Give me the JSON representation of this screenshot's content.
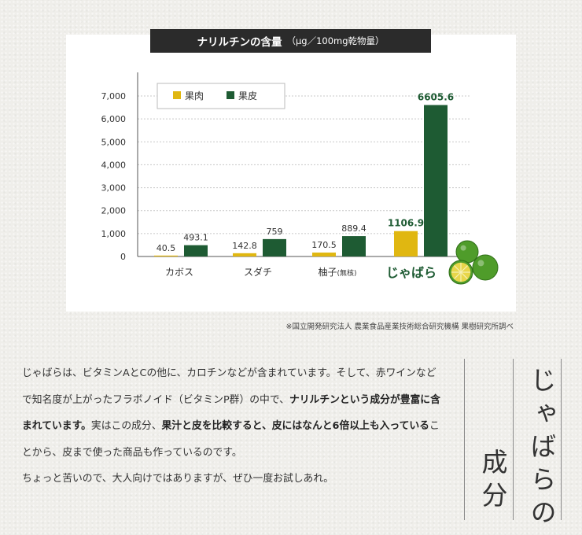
{
  "chart_data": {
    "type": "bar",
    "title": "ナリルチンの含量",
    "title_unit": "（μg／100mg乾物量）",
    "categories": [
      "カボス",
      "スダチ",
      "柚子",
      "じゃばら"
    ],
    "category_suffixes": [
      "",
      "",
      "(無核)",
      ""
    ],
    "series": [
      {
        "name": "果肉",
        "color": "#e0b711",
        "values": [
          40.5,
          142.8,
          170.5,
          1106.9
        ],
        "labels": [
          "40.5",
          "142.8",
          "170.5",
          "1106.9"
        ]
      },
      {
        "name": "果皮",
        "color": "#1e5b33",
        "values": [
          493.1,
          759,
          889.4,
          6605.6
        ],
        "labels": [
          "493.1",
          "759",
          "889.4",
          "6605.6"
        ]
      }
    ],
    "ylim": [
      0,
      7000
    ],
    "yticks": [
      0,
      1000,
      2000,
      3000,
      4000,
      5000,
      6000,
      7000
    ],
    "ytick_labels": [
      "0",
      "1,000",
      "2,000",
      "3,000",
      "4,000",
      "5,000",
      "6,000",
      "7,000"
    ],
    "highlight_category": "じゃばら",
    "grid": true,
    "legend_position": "top-left"
  },
  "source_note": "※国立開発研究法人 農業食品産業技術総合研究機構 果樹研究所調べ",
  "section_title": {
    "line1": "じゃばらの",
    "line2": "成分"
  },
  "paragraph1": [
    {
      "t": "じゃばらは、ビタミンAとCの他に、カロチンなどが含まれています。そして、赤ワインなどで知名度が上がったフラボノイド（ビタミンP群）の中で、"
    },
    {
      "t": "ナリルチンという成分が豊富に含まれています。",
      "b": true
    },
    {
      "t": "実はこの成分、"
    },
    {
      "t": "果汁と皮を比較すると、皮にはなんと6倍以上も入っている",
      "b": true
    },
    {
      "t": "ことから、皮まで使った商品も作っているのです。"
    }
  ],
  "paragraph2": "ちょっと苦いので、大人向けではありますが、ぜひ一度お試しあれ。",
  "colors": {
    "highlight_text": "#1e5b33",
    "citrus": "#4f9c2a",
    "title_bar": "#2b2b2b"
  }
}
